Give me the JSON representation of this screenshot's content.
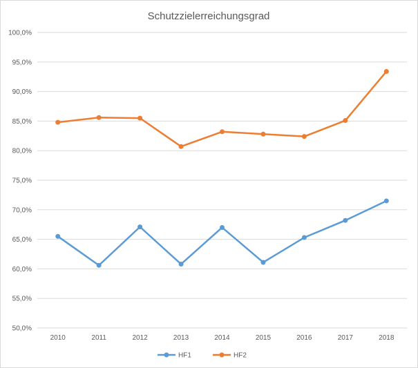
{
  "chart_data": {
    "type": "line",
    "title": "Schutzzielerreichungsgrad",
    "xlabel": "",
    "ylabel": "",
    "categories": [
      "2010",
      "2011",
      "2012",
      "2013",
      "2014",
      "2015",
      "2016",
      "2017",
      "2018"
    ],
    "series": [
      {
        "name": "HF1",
        "color": "#5b9bd5",
        "values": [
          65.5,
          60.6,
          67.1,
          60.8,
          67.0,
          61.1,
          65.3,
          68.2,
          71.5
        ]
      },
      {
        "name": "HF2",
        "color": "#ed7d31",
        "values": [
          84.8,
          85.6,
          85.5,
          80.7,
          83.2,
          82.8,
          82.4,
          85.1,
          93.4
        ]
      }
    ],
    "ylim": [
      50,
      100
    ],
    "yticks": [
      "50,0%",
      "55,0%",
      "60,0%",
      "65,0%",
      "70,0%",
      "75,0%",
      "80,0%",
      "85,0%",
      "90,0%",
      "95,0%",
      "100,0%"
    ],
    "grid": true,
    "legend_position": "bottom"
  }
}
